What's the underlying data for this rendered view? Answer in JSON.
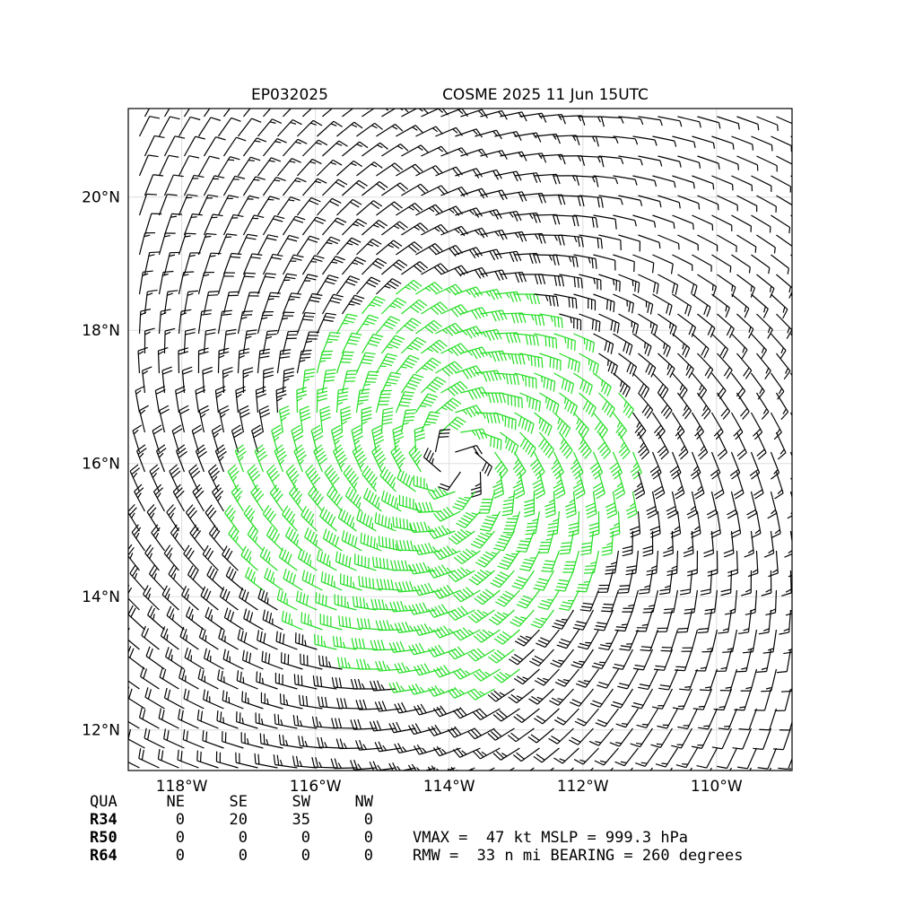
{
  "chart_data": {
    "type": "wind-barb-map",
    "title_left": "EP032025",
    "title_right": "COSME 2025 11 Jun 15UTC",
    "xlim": [
      -118.8,
      -108.87
    ],
    "ylim": [
      11.39,
      21.33
    ],
    "xticks": [
      {
        "value": -118,
        "label": "118°W"
      },
      {
        "value": -116,
        "label": "116°W"
      },
      {
        "value": -114,
        "label": "114°W"
      },
      {
        "value": -112,
        "label": "112°W"
      },
      {
        "value": -110,
        "label": "110°W"
      }
    ],
    "yticks": [
      {
        "value": 12,
        "label": "12°N"
      },
      {
        "value": 14,
        "label": "14°N"
      },
      {
        "value": 16,
        "label": "16°N"
      },
      {
        "value": 18,
        "label": "18°N"
      },
      {
        "value": 20,
        "label": "20°N"
      }
    ],
    "grid": true,
    "radii_table": {
      "header": [
        "QUA",
        "NE",
        "SE",
        "SW",
        "NW"
      ],
      "rows": [
        [
          "R34",
          0,
          20,
          35,
          0
        ],
        [
          "R50",
          0,
          0,
          0,
          0
        ],
        [
          "R64",
          0,
          0,
          0,
          0
        ]
      ]
    },
    "info_lines": [
      "VMAX =  47 kt MSLP = 999.3 hPa",
      "RMW =  33 n mi BEARING = 260 degrees"
    ]
  }
}
